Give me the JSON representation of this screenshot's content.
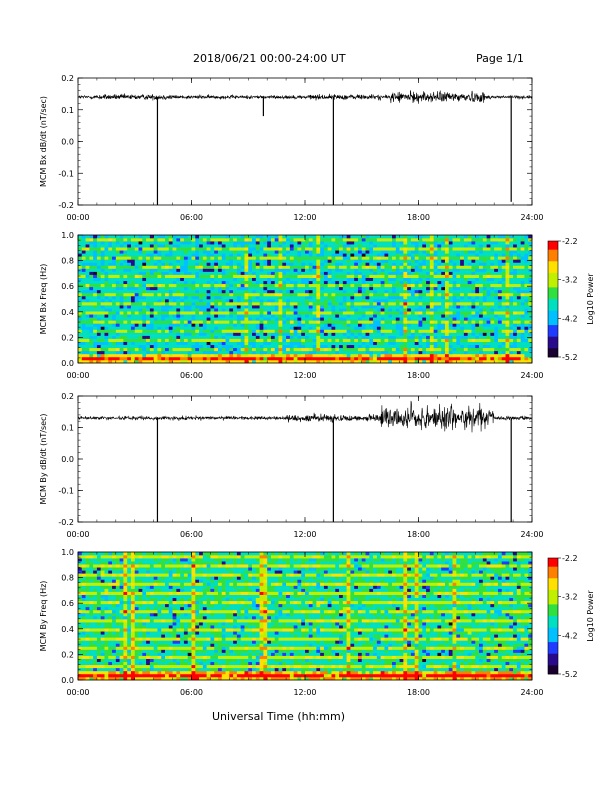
{
  "header": {
    "title": "2018/06/21  00:00-24:00 UT",
    "page": "Page 1/1"
  },
  "footer": {
    "xlabel": "Universal Time (hh:mm)"
  },
  "colors": {
    "trace": "#000000",
    "colormap": [
      "#1a0030",
      "#2a0a8c",
      "#1f3cff",
      "#00c0ff",
      "#00e0c0",
      "#30e040",
      "#c0f000",
      "#ffe000",
      "#ff8000",
      "#ff0000"
    ]
  },
  "chart_data": [
    {
      "type": "line",
      "ylabel": "MCM Bx dB/dt (nT/sec)",
      "xlim": [
        0,
        24
      ],
      "ylim": [
        -0.2,
        0.2
      ],
      "xticks": [
        "00:00",
        "06:00",
        "12:00",
        "18:00",
        "24:00"
      ],
      "yticks": [
        "0.2",
        "0.1",
        "0.0",
        "-0.1",
        "-0.2"
      ],
      "baseline": 0.14,
      "spikes": [
        {
          "x": 4.2,
          "y": -0.2
        },
        {
          "x": 9.8,
          "y": 0.08
        },
        {
          "x": 13.5,
          "y": -0.2
        },
        {
          "x": 22.9,
          "y": -0.19
        }
      ],
      "series": [
        {
          "values_summary": "noise around 0.14, larger amplitude 17:00-21:00"
        }
      ]
    },
    {
      "type": "heatmap",
      "ylabel": "MCM Bx Freq (Hz)",
      "xlim": [
        0,
        24
      ],
      "ylim": [
        0,
        1.0
      ],
      "xticks": [
        "00:00",
        "06:00",
        "12:00",
        "18:00",
        "24:00"
      ],
      "yticks": [
        "1.0",
        "0.8",
        "0.6",
        "0.4",
        "0.2",
        "0.0"
      ],
      "colorbar": {
        "label": "Log10 Power",
        "ticks": [
          "-2.2",
          "-3.2",
          "-4.2",
          "-5.2"
        ],
        "range": [
          -5.2,
          -2.2
        ]
      }
    },
    {
      "type": "line",
      "ylabel": "MCM By dB/dt (nT/sec)",
      "xlim": [
        0,
        24
      ],
      "ylim": [
        -0.2,
        0.2
      ],
      "xticks": [
        "00:00",
        "06:00",
        "12:00",
        "18:00",
        "24:00"
      ],
      "yticks": [
        "0.2",
        "0.1",
        "0.0",
        "-0.1",
        "-0.2"
      ],
      "baseline": 0.13,
      "spikes": [
        {
          "x": 4.2,
          "y": -0.2
        },
        {
          "x": 13.5,
          "y": -0.2
        },
        {
          "x": 22.9,
          "y": -0.2
        }
      ],
      "series": [
        {
          "values_summary": "noise around 0.13, larger amplitude 16:00-22:00 reaching 0.05-0.2"
        }
      ]
    },
    {
      "type": "heatmap",
      "ylabel": "MCM By Freq (Hz)",
      "xlim": [
        0,
        24
      ],
      "ylim": [
        0,
        1.0
      ],
      "xticks": [
        "00:00",
        "06:00",
        "12:00",
        "18:00",
        "24:00"
      ],
      "yticks": [
        "1.0",
        "0.8",
        "0.6",
        "0.4",
        "0.2",
        "0.0"
      ],
      "colorbar": {
        "label": "Log10 Power",
        "ticks": [
          "-2.2",
          "-3.2",
          "-4.2",
          "-5.2"
        ],
        "range": [
          -5.2,
          -2.2
        ]
      }
    }
  ]
}
